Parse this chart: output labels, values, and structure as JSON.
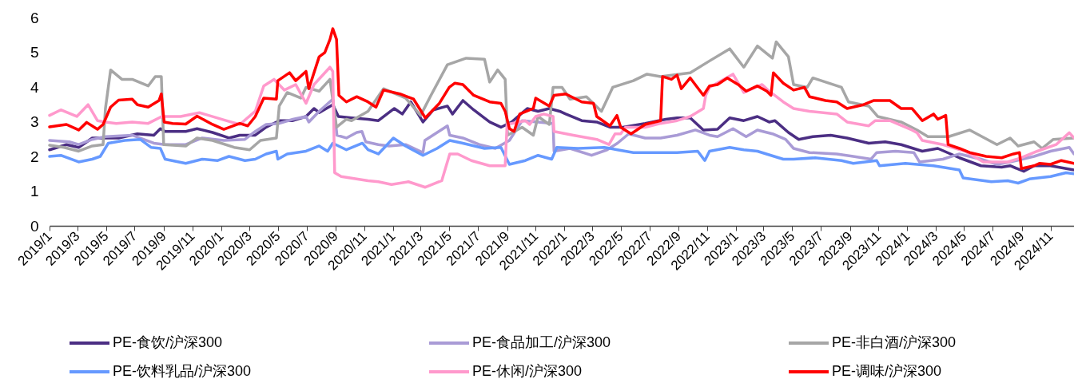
{
  "chart_data": {
    "type": "line",
    "xlim": [
      "2019-01-01",
      "2024-12-21"
    ],
    "ylim": [
      0,
      6
    ],
    "yticks": [
      0,
      1,
      2,
      3,
      4,
      5,
      6
    ],
    "legend": "bottom",
    "xticks": [
      {
        "value": "2019-01",
        "label": "2019/1"
      },
      {
        "value": "2019-03",
        "label": "2019/3"
      },
      {
        "value": "2019-05",
        "label": "2019/5"
      },
      {
        "value": "2019-07",
        "label": "2019/7"
      },
      {
        "value": "2019-09",
        "label": "2019/9"
      },
      {
        "value": "2019-11",
        "label": "2019/11"
      },
      {
        "value": "2020-01",
        "label": "2020/1"
      },
      {
        "value": "2020-03",
        "label": "2020/3"
      },
      {
        "value": "2020-05",
        "label": "2020/5"
      },
      {
        "value": "2020-07",
        "label": "2020/7"
      },
      {
        "value": "2020-09",
        "label": "2020/9"
      },
      {
        "value": "2020-11",
        "label": "2020/11"
      },
      {
        "value": "2021-01",
        "label": "2021/1"
      },
      {
        "value": "2021-03",
        "label": "2021/3"
      },
      {
        "value": "2021-05",
        "label": "2021/5"
      },
      {
        "value": "2021-07",
        "label": "2021/7"
      },
      {
        "value": "2021-09",
        "label": "2021/9"
      },
      {
        "value": "2021-11",
        "label": "2021/11"
      },
      {
        "value": "2022-01",
        "label": "2022/1"
      },
      {
        "value": "2022-03",
        "label": "2022/3"
      },
      {
        "value": "2022-05",
        "label": "2022/5"
      },
      {
        "value": "2022-07",
        "label": "2022/7"
      },
      {
        "value": "2022-09",
        "label": "2022/9"
      },
      {
        "value": "2022-11",
        "label": "2022/11"
      },
      {
        "value": "2023-01",
        "label": "2023/1"
      },
      {
        "value": "2023-03",
        "label": "2023/3"
      },
      {
        "value": "2023-05",
        "label": "2023/5"
      },
      {
        "value": "2023-07",
        "label": "2023/7"
      },
      {
        "value": "2023-09",
        "label": "2023/9"
      },
      {
        "value": "2023-11",
        "label": "2023/11"
      },
      {
        "value": "2024-01",
        "label": "2024/1"
      },
      {
        "value": "2024-03",
        "label": "2024/3"
      },
      {
        "value": "2024-05",
        "label": "2024/5"
      },
      {
        "value": "2024-07",
        "label": "2024/7"
      },
      {
        "value": "2024-09",
        "label": "2024/9"
      },
      {
        "value": "2024-11",
        "label": "2024/11"
      }
    ],
    "series": [
      {
        "name": "PE-食饮/沪深300",
        "color": "#4b2e83",
        "x": [
          "2019-01-01",
          "2019-02-06",
          "2019-03-04",
          "2019-04-02",
          "2019-04-30",
          "2019-05-28",
          "2019-07-07",
          "2019-08-11",
          "2019-08-25",
          "2019-09-04",
          "2019-10-18",
          "2019-11-11",
          "2019-12-14",
          "2020-01-18",
          "2020-02-10",
          "2020-03-14",
          "2020-04-06",
          "2020-05-04",
          "2020-06-02",
          "2020-06-30",
          "2020-07-17",
          "2020-07-28",
          "2020-08-26",
          "2020-09-07",
          "2020-10-05",
          "2020-11-09",
          "2020-12-01",
          "2021-01-04",
          "2021-01-21",
          "2021-02-08",
          "2021-03-06",
          "2021-03-28",
          "2021-04-27",
          "2021-05-08",
          "2021-05-30",
          "2021-06-22",
          "2021-07-26",
          "2021-08-19",
          "2021-09-11",
          "2021-10-14",
          "2021-11-06",
          "2021-11-30",
          "2021-12-22",
          "2022-01-04",
          "2022-02-07",
          "2022-03-11",
          "2022-04-08",
          "2022-05-06",
          "2022-06-22",
          "2022-08-05",
          "2022-08-29",
          "2022-09-26",
          "2022-10-24",
          "2022-11-23",
          "2022-12-19",
          "2023-01-18",
          "2023-02-16",
          "2023-03-13",
          "2023-03-25",
          "2023-04-23",
          "2023-05-15",
          "2023-06-14",
          "2023-07-22",
          "2023-08-26",
          "2023-10-11",
          "2023-11-15",
          "2023-12-19",
          "2024-02-02",
          "2024-03-06",
          "2024-04-21",
          "2024-06-06",
          "2024-07-20",
          "2024-08-07",
          "2024-09-05",
          "2024-09-27",
          "2024-11-01",
          "2024-12-21"
        ],
        "values": [
          2.19,
          2.34,
          2.26,
          2.53,
          2.53,
          2.53,
          2.65,
          2.61,
          2.8,
          2.72,
          2.72,
          2.8,
          2.69,
          2.53,
          2.61,
          2.61,
          2.84,
          3.03,
          3.03,
          3.15,
          3.38,
          3.26,
          3.49,
          3.15,
          3.11,
          3.07,
          3.03,
          3.38,
          3.22,
          3.57,
          2.99,
          3.34,
          3.45,
          3.22,
          3.61,
          3.34,
          2.99,
          2.84,
          2.99,
          3.38,
          3.3,
          3.38,
          3.3,
          3.22,
          3.03,
          2.99,
          2.84,
          2.84,
          2.95,
          3.07,
          3.11,
          3.11,
          2.76,
          2.78,
          3.11,
          3.03,
          3.15,
          2.99,
          3.03,
          2.69,
          2.49,
          2.57,
          2.61,
          2.53,
          2.38,
          2.42,
          2.34,
          2.15,
          2.23,
          1.96,
          1.73,
          1.69,
          1.73,
          1.57,
          1.73,
          1.73,
          1.61
        ]
      },
      {
        "name": "PE-食品加工/沪深300",
        "color": "#a99bd6",
        "x": [
          "2019-01-01",
          "2019-02-12",
          "2019-03-04",
          "2019-04-02",
          "2019-04-30",
          "2019-06-26",
          "2019-08-11",
          "2019-09-04",
          "2019-10-18",
          "2019-11-22",
          "2020-01-07",
          "2020-02-21",
          "2020-03-14",
          "2020-04-06",
          "2020-05-04",
          "2020-06-02",
          "2020-06-30",
          "2020-07-06",
          "2020-07-28",
          "2020-08-26",
          "2020-09-04",
          "2020-09-24",
          "2020-10-16",
          "2020-10-27",
          "2020-11-04",
          "2020-12-01",
          "2020-12-24",
          "2021-01-28",
          "2021-03-06",
          "2021-03-10",
          "2021-04-27",
          "2021-05-02",
          "2021-05-30",
          "2021-07-04",
          "2021-08-07",
          "2021-09-06",
          "2021-10-03",
          "2021-11-06",
          "2021-12-08",
          "2021-12-10",
          "2022-01-13",
          "2022-02-28",
          "2022-04-02",
          "2022-04-24",
          "2022-05-18",
          "2022-06-22",
          "2022-07-25",
          "2022-08-29",
          "2022-10-07",
          "2022-11-06",
          "2022-11-23",
          "2022-12-26",
          "2023-01-23",
          "2023-02-16",
          "2023-03-20",
          "2023-04-17",
          "2023-05-04",
          "2023-06-07",
          "2023-08-04",
          "2023-09-08",
          "2023-10-16",
          "2023-10-28",
          "2023-12-07",
          "2024-01-15",
          "2024-01-27",
          "2024-03-17",
          "2024-04-21",
          "2024-06-06",
          "2024-07-10",
          "2024-08-07",
          "2024-09-27",
          "2024-11-01",
          "2024-12-11",
          "2024-12-21"
        ],
        "values": [
          2.46,
          2.42,
          2.34,
          2.49,
          2.57,
          2.61,
          2.38,
          2.34,
          2.34,
          2.53,
          2.46,
          2.49,
          2.72,
          2.92,
          2.95,
          3.07,
          3.15,
          2.99,
          3.3,
          3.65,
          2.61,
          2.53,
          2.69,
          2.72,
          2.42,
          2.34,
          2.3,
          2.34,
          2.11,
          2.46,
          2.88,
          2.61,
          2.53,
          2.34,
          2.23,
          2.46,
          3.03,
          2.99,
          2.95,
          2.15,
          2.23,
          2.03,
          2.19,
          2.38,
          2.65,
          2.53,
          2.53,
          2.61,
          2.76,
          2.61,
          2.57,
          2.8,
          2.57,
          2.76,
          2.65,
          2.49,
          2.23,
          2.11,
          2.07,
          2.0,
          1.92,
          2.11,
          2.15,
          2.11,
          1.84,
          1.92,
          2.07,
          1.92,
          1.77,
          1.84,
          2.0,
          2.15,
          2.26,
          2.07
        ]
      },
      {
        "name": "PE-非白酒/沪深300",
        "color": "#a6a6a6",
        "x": [
          "2019-01-01",
          "2019-02-01",
          "2019-03-04",
          "2019-04-02",
          "2019-04-25",
          "2019-04-30",
          "2019-05-11",
          "2019-06-04",
          "2019-06-26",
          "2019-07-30",
          "2019-08-14",
          "2019-08-27",
          "2019-09-01",
          "2019-10-18",
          "2019-11-11",
          "2019-12-14",
          "2020-01-29",
          "2020-03-02",
          "2020-03-25",
          "2020-04-28",
          "2020-05-04",
          "2020-05-21",
          "2020-06-19",
          "2020-06-30",
          "2020-07-28",
          "2020-08-20",
          "2020-09-03",
          "2020-09-24",
          "2020-10-05",
          "2020-11-09",
          "2020-12-12",
          "2021-01-28",
          "2021-03-01",
          "2021-03-23",
          "2021-04-27",
          "2021-06-06",
          "2021-07-15",
          "2021-07-26",
          "2021-08-12",
          "2021-08-28",
          "2021-09-02",
          "2021-10-03",
          "2021-10-27",
          "2021-11-06",
          "2021-11-30",
          "2021-12-08",
          "2021-12-27",
          "2022-01-13",
          "2022-02-17",
          "2022-03-21",
          "2022-04-14",
          "2022-05-28",
          "2022-06-26",
          "2022-07-25",
          "2022-09-26",
          "2022-11-06",
          "2022-12-19",
          "2023-01-18",
          "2023-02-16",
          "2023-03-20",
          "2023-03-28",
          "2023-04-23",
          "2023-05-04",
          "2023-06-02",
          "2023-06-14",
          "2023-08-14",
          "2023-08-29",
          "2023-10-11",
          "2023-10-30",
          "2023-12-19",
          "2024-01-22",
          "2024-02-14",
          "2024-03-29",
          "2024-05-13",
          "2024-07-10",
          "2024-08-07",
          "2024-08-24",
          "2024-09-27",
          "2024-10-14",
          "2024-11-07",
          "2024-12-21"
        ],
        "values": [
          2.32,
          2.26,
          2.15,
          2.3,
          2.34,
          3.38,
          4.49,
          4.22,
          4.22,
          4.03,
          4.3,
          4.3,
          2.34,
          2.3,
          2.53,
          2.46,
          2.26,
          2.19,
          2.46,
          2.53,
          3.45,
          3.84,
          3.68,
          3.99,
          3.88,
          4.22,
          2.84,
          3.07,
          3.03,
          3.3,
          3.95,
          3.68,
          3.18,
          3.76,
          4.64,
          4.83,
          4.8,
          4.14,
          4.49,
          4.22,
          2.61,
          2.84,
          2.61,
          3.15,
          2.92,
          3.99,
          3.99,
          3.65,
          3.72,
          3.3,
          3.99,
          4.18,
          4.37,
          4.3,
          4.41,
          4.75,
          5.1,
          4.57,
          5.18,
          4.83,
          5.3,
          4.87,
          4.07,
          3.99,
          4.26,
          3.99,
          3.57,
          3.45,
          3.15,
          2.99,
          2.76,
          2.57,
          2.57,
          2.76,
          2.34,
          2.53,
          2.3,
          2.42,
          2.23,
          2.49,
          2.53
        ]
      },
      {
        "name": "PE-饮料乳品/沪深300",
        "color": "#6699ff",
        "x": [
          "2019-01-01",
          "2019-01-25",
          "2019-03-04",
          "2019-04-02",
          "2019-04-19",
          "2019-05-06",
          "2019-06-10",
          "2019-07-13",
          "2019-08-05",
          "2019-08-25",
          "2019-09-04",
          "2019-10-18",
          "2019-11-22",
          "2019-12-25",
          "2020-01-18",
          "2020-02-21",
          "2020-03-14",
          "2020-04-06",
          "2020-04-28",
          "2020-05-01",
          "2020-05-21",
          "2020-06-30",
          "2020-07-28",
          "2020-08-15",
          "2020-08-26",
          "2020-09-24",
          "2020-10-28",
          "2020-11-09",
          "2020-12-01",
          "2021-01-02",
          "2021-01-28",
          "2021-03-06",
          "2021-04-05",
          "2021-05-02",
          "2021-05-30",
          "2021-07-15",
          "2021-08-19",
          "2021-09-06",
          "2021-10-10",
          "2021-11-06",
          "2021-12-05",
          "2021-12-16",
          "2022-01-30",
          "2022-03-27",
          "2022-04-24",
          "2022-05-28",
          "2022-07-13",
          "2022-08-29",
          "2022-10-12",
          "2022-10-27",
          "2022-11-06",
          "2022-12-19",
          "2023-01-18",
          "2023-02-16",
          "2023-04-12",
          "2023-05-04",
          "2023-06-19",
          "2023-08-14",
          "2023-09-08",
          "2023-10-28",
          "2023-11-03",
          "2023-12-28",
          "2024-02-26",
          "2024-04-21",
          "2024-04-29",
          "2024-06-28",
          "2024-08-02",
          "2024-08-24",
          "2024-09-17",
          "2024-11-01",
          "2024-12-04",
          "2024-12-21"
        ],
        "values": [
          2.0,
          2.03,
          1.84,
          1.92,
          2.0,
          2.38,
          2.46,
          2.49,
          2.26,
          2.23,
          1.92,
          1.8,
          1.92,
          1.88,
          2.0,
          1.88,
          1.92,
          2.07,
          2.15,
          1.92,
          2.07,
          2.15,
          2.3,
          2.15,
          2.38,
          2.19,
          2.38,
          2.19,
          2.07,
          2.53,
          2.3,
          2.03,
          2.23,
          2.46,
          2.38,
          2.23,
          2.26,
          1.77,
          1.88,
          2.03,
          1.92,
          2.26,
          2.23,
          2.26,
          2.19,
          2.11,
          2.11,
          2.11,
          2.15,
          1.88,
          2.15,
          2.26,
          2.19,
          2.15,
          1.92,
          1.92,
          1.96,
          1.88,
          1.8,
          1.88,
          1.73,
          1.8,
          1.73,
          1.61,
          1.38,
          1.27,
          1.3,
          1.23,
          1.35,
          1.42,
          1.53,
          1.5
        ]
      },
      {
        "name": "PE-休闲/沪深300",
        "color": "#ff99cc",
        "x": [
          "2019-01-01",
          "2019-01-25",
          "2019-02-28",
          "2019-03-24",
          "2019-04-13",
          "2019-04-30",
          "2019-05-23",
          "2019-06-26",
          "2019-07-30",
          "2019-08-28",
          "2019-10-07",
          "2019-11-16",
          "2020-01-12",
          "2020-02-10",
          "2020-03-14",
          "2020-04-01",
          "2020-04-23",
          "2020-05-15",
          "2020-06-08",
          "2020-06-30",
          "2020-07-17",
          "2020-08-20",
          "2020-08-26",
          "2020-08-30",
          "2020-09-13",
          "2020-11-09",
          "2020-12-01",
          "2020-12-29",
          "2021-02-03",
          "2021-03-11",
          "2021-04-15",
          "2021-05-02",
          "2021-05-19",
          "2021-06-17",
          "2021-07-26",
          "2021-08-28",
          "2021-09-01",
          "2021-10-10",
          "2021-10-19",
          "2021-11-01",
          "2021-11-18",
          "2021-12-08",
          "2021-12-10",
          "2022-01-20",
          "2022-03-11",
          "2022-04-06",
          "2022-04-19",
          "2022-05-01",
          "2022-05-11",
          "2022-06-22",
          "2022-07-25",
          "2022-08-29",
          "2022-09-26",
          "2022-10-24",
          "2022-10-29",
          "2022-11-06",
          "2022-12-26",
          "2023-01-18",
          "2023-02-26",
          "2023-03-13",
          "2023-04-12",
          "2023-05-04",
          "2023-06-07",
          "2023-08-04",
          "2023-08-26",
          "2023-10-11",
          "2023-10-25",
          "2023-11-25",
          "2024-01-11",
          "2024-01-22",
          "2024-02-02",
          "2024-03-17",
          "2024-05-03",
          "2024-06-11",
          "2024-08-02",
          "2024-08-31",
          "2024-10-04",
          "2024-11-13",
          "2024-12-11",
          "2024-12-21"
        ],
        "values": [
          3.18,
          3.34,
          3.15,
          3.49,
          3.03,
          2.99,
          2.95,
          2.99,
          2.95,
          3.15,
          3.15,
          3.26,
          3.03,
          2.92,
          3.3,
          4.03,
          4.22,
          3.91,
          4.07,
          3.53,
          4.07,
          4.57,
          4.45,
          1.53,
          1.42,
          1.3,
          1.27,
          1.19,
          1.27,
          1.11,
          1.3,
          2.07,
          2.07,
          1.88,
          1.73,
          1.73,
          2.92,
          3.03,
          2.92,
          3.15,
          3.22,
          3.15,
          2.72,
          2.61,
          2.49,
          2.34,
          2.65,
          2.65,
          2.84,
          2.84,
          2.95,
          3.03,
          3.15,
          3.38,
          3.76,
          3.99,
          4.37,
          3.84,
          4.07,
          3.88,
          3.57,
          3.38,
          3.3,
          3.22,
          2.99,
          2.88,
          3.03,
          3.03,
          2.76,
          2.68,
          2.46,
          2.34,
          2.15,
          1.84,
          1.84,
          1.96,
          2.15,
          2.34,
          2.68,
          2.53
        ]
      },
      {
        "name": "PE-调味/沪深300",
        "color": "#ff0000",
        "x": [
          "2019-01-01",
          "2019-02-06",
          "2019-03-04",
          "2019-03-21",
          "2019-04-13",
          "2019-04-25",
          "2019-05-11",
          "2019-05-28",
          "2019-06-26",
          "2019-07-07",
          "2019-07-30",
          "2019-08-22",
          "2019-08-27",
          "2019-09-02",
          "2019-09-20",
          "2019-10-18",
          "2019-11-11",
          "2019-12-14",
          "2020-01-07",
          "2020-02-10",
          "2020-02-27",
          "2020-03-14",
          "2020-04-01",
          "2020-04-28",
          "2020-05-01",
          "2020-05-26",
          "2020-06-08",
          "2020-06-30",
          "2020-07-06",
          "2020-07-28",
          "2020-08-09",
          "2020-08-20",
          "2020-08-26",
          "2020-09-03",
          "2020-09-08",
          "2020-09-24",
          "2020-10-16",
          "2020-11-09",
          "2020-11-26",
          "2020-12-12",
          "2021-01-16",
          "2021-02-14",
          "2021-03-11",
          "2021-04-10",
          "2021-05-01",
          "2021-05-13",
          "2021-05-30",
          "2021-06-22",
          "2021-07-26",
          "2021-08-19",
          "2021-08-28",
          "2021-09-06",
          "2021-09-16",
          "2021-09-28",
          "2021-10-27",
          "2021-11-01",
          "2021-11-30",
          "2021-12-10",
          "2022-01-04",
          "2022-02-07",
          "2022-03-04",
          "2022-03-11",
          "2022-04-08",
          "2022-04-23",
          "2022-05-01",
          "2022-05-23",
          "2022-06-22",
          "2022-07-25",
          "2022-07-29",
          "2022-08-17",
          "2022-08-29",
          "2022-09-07",
          "2022-09-26",
          "2022-10-24",
          "2022-11-06",
          "2022-11-23",
          "2022-12-14",
          "2023-01-06",
          "2023-01-23",
          "2023-02-16",
          "2023-03-08",
          "2023-03-17",
          "2023-03-22",
          "2023-04-12",
          "2023-05-04",
          "2023-05-27",
          "2023-06-07",
          "2023-07-11",
          "2023-08-04",
          "2023-08-26",
          "2023-09-30",
          "2023-10-22",
          "2023-11-25",
          "2023-12-19",
          "2024-01-11",
          "2024-02-02",
          "2024-02-26",
          "2024-03-06",
          "2024-03-23",
          "2024-03-28",
          "2024-04-21",
          "2024-05-13",
          "2024-06-17",
          "2024-07-20",
          "2024-08-14",
          "2024-08-27",
          "2024-08-31",
          "2024-09-27",
          "2024-10-09",
          "2024-11-01",
          "2024-11-24",
          "2024-12-21"
        ],
        "values": [
          2.85,
          2.92,
          2.76,
          2.98,
          2.78,
          2.92,
          3.42,
          3.62,
          3.65,
          3.49,
          3.42,
          3.61,
          3.8,
          2.99,
          2.95,
          2.93,
          3.16,
          2.92,
          2.78,
          2.95,
          2.88,
          3.15,
          3.68,
          3.65,
          4.18,
          4.41,
          4.18,
          4.45,
          3.95,
          4.87,
          4.99,
          5.37,
          5.68,
          5.37,
          3.76,
          3.57,
          3.72,
          3.57,
          3.42,
          3.91,
          3.8,
          3.65,
          3.11,
          3.53,
          3.99,
          4.11,
          4.07,
          3.76,
          3.57,
          3.53,
          3.3,
          2.8,
          2.72,
          3.22,
          3.38,
          3.68,
          3.45,
          3.76,
          3.8,
          3.57,
          3.53,
          3.15,
          2.88,
          3.18,
          2.84,
          2.65,
          2.92,
          3.03,
          4.3,
          4.22,
          4.34,
          3.95,
          4.26,
          3.76,
          4.03,
          4.07,
          4.26,
          4.07,
          3.88,
          4.03,
          3.88,
          3.76,
          4.41,
          4.11,
          3.91,
          3.99,
          3.72,
          3.61,
          3.57,
          3.38,
          3.49,
          3.61,
          3.61,
          3.38,
          3.38,
          3.03,
          3.22,
          3.07,
          3.18,
          2.34,
          2.23,
          2.11,
          2.0,
          1.96,
          2.07,
          2.11,
          1.65,
          1.73,
          1.8,
          1.77,
          1.88,
          1.8
        ]
      }
    ]
  }
}
